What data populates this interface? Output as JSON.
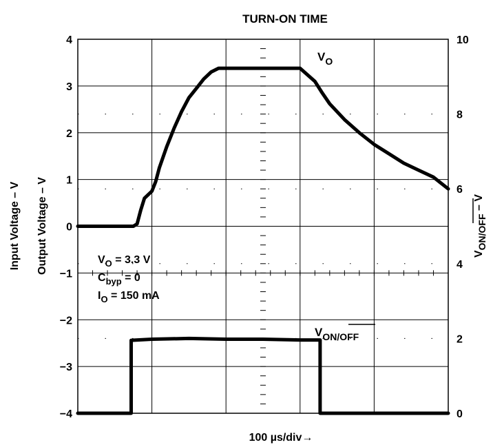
{
  "chart_data": {
    "type": "line",
    "title": "TURN-ON TIME",
    "xlabel": "100 µs/div→",
    "ylabel_left_outer": "Input Voltage – V",
    "ylabel_left_inner": "Output Voltage – V",
    "ylabel_right": {
      "main": "V",
      "sub": "ON/OFF",
      "suffix": " – V"
    },
    "x_divisions": 5,
    "y_left": {
      "min": -4,
      "max": 4,
      "ticks": [
        4,
        3,
        2,
        1,
        0,
        -1,
        -2,
        -3,
        -4
      ],
      "tick_labels": [
        "4",
        "3",
        "2",
        "1",
        "0",
        "−1",
        "−2",
        "−3",
        "−4"
      ]
    },
    "y_right": {
      "min": 0,
      "max": 10,
      "ticks": [
        10,
        8,
        6,
        4,
        2,
        0
      ],
      "tick_labels": [
        "10",
        "8",
        "6",
        "4",
        "2",
        "0"
      ]
    },
    "grid": true,
    "series": [
      {
        "name": "VO",
        "label_main": "V",
        "label_sub": "O",
        "axis": "left",
        "x": [
          0,
          0.2,
          0.4,
          0.6,
          0.75,
          0.8,
          0.85,
          0.9,
          1.0,
          1.05,
          1.1,
          1.2,
          1.3,
          1.4,
          1.5,
          1.6,
          1.7,
          1.8,
          1.9,
          2.0,
          2.1,
          2.2,
          2.4,
          2.6,
          2.8,
          3.0,
          3.2,
          3.3,
          3.4,
          3.5,
          3.6,
          3.8,
          4.0,
          4.2,
          4.4,
          4.6,
          4.8,
          5.0
        ],
        "y": [
          0,
          0,
          0,
          0,
          0,
          0.05,
          0.35,
          0.6,
          0.75,
          0.95,
          1.25,
          1.7,
          2.1,
          2.45,
          2.75,
          2.95,
          3.15,
          3.3,
          3.38,
          3.38,
          3.38,
          3.38,
          3.38,
          3.38,
          3.38,
          3.38,
          3.1,
          2.85,
          2.62,
          2.45,
          2.28,
          2.0,
          1.75,
          1.55,
          1.35,
          1.2,
          1.05,
          0.8
        ]
      },
      {
        "name": "VON/OFF",
        "label_main": "V",
        "label_sub": "ON/OFF",
        "axis": "right",
        "x": [
          0,
          0.35,
          0.72,
          0.72,
          1.0,
          1.5,
          2.0,
          2.5,
          3.0,
          3.27,
          3.27,
          5.0
        ],
        "y": [
          0,
          0,
          0,
          1.95,
          1.98,
          2.0,
          1.98,
          1.98,
          1.96,
          1.96,
          0,
          0
        ]
      }
    ],
    "annotation": {
      "line1": {
        "main": "V",
        "sub": "O",
        "rest": " = 3.3 V"
      },
      "line2": {
        "main": "C",
        "sub": "byp",
        "rest": " = 0"
      },
      "line3": {
        "main": "I",
        "sub": "O",
        "rest": " = 150 mA"
      }
    }
  }
}
